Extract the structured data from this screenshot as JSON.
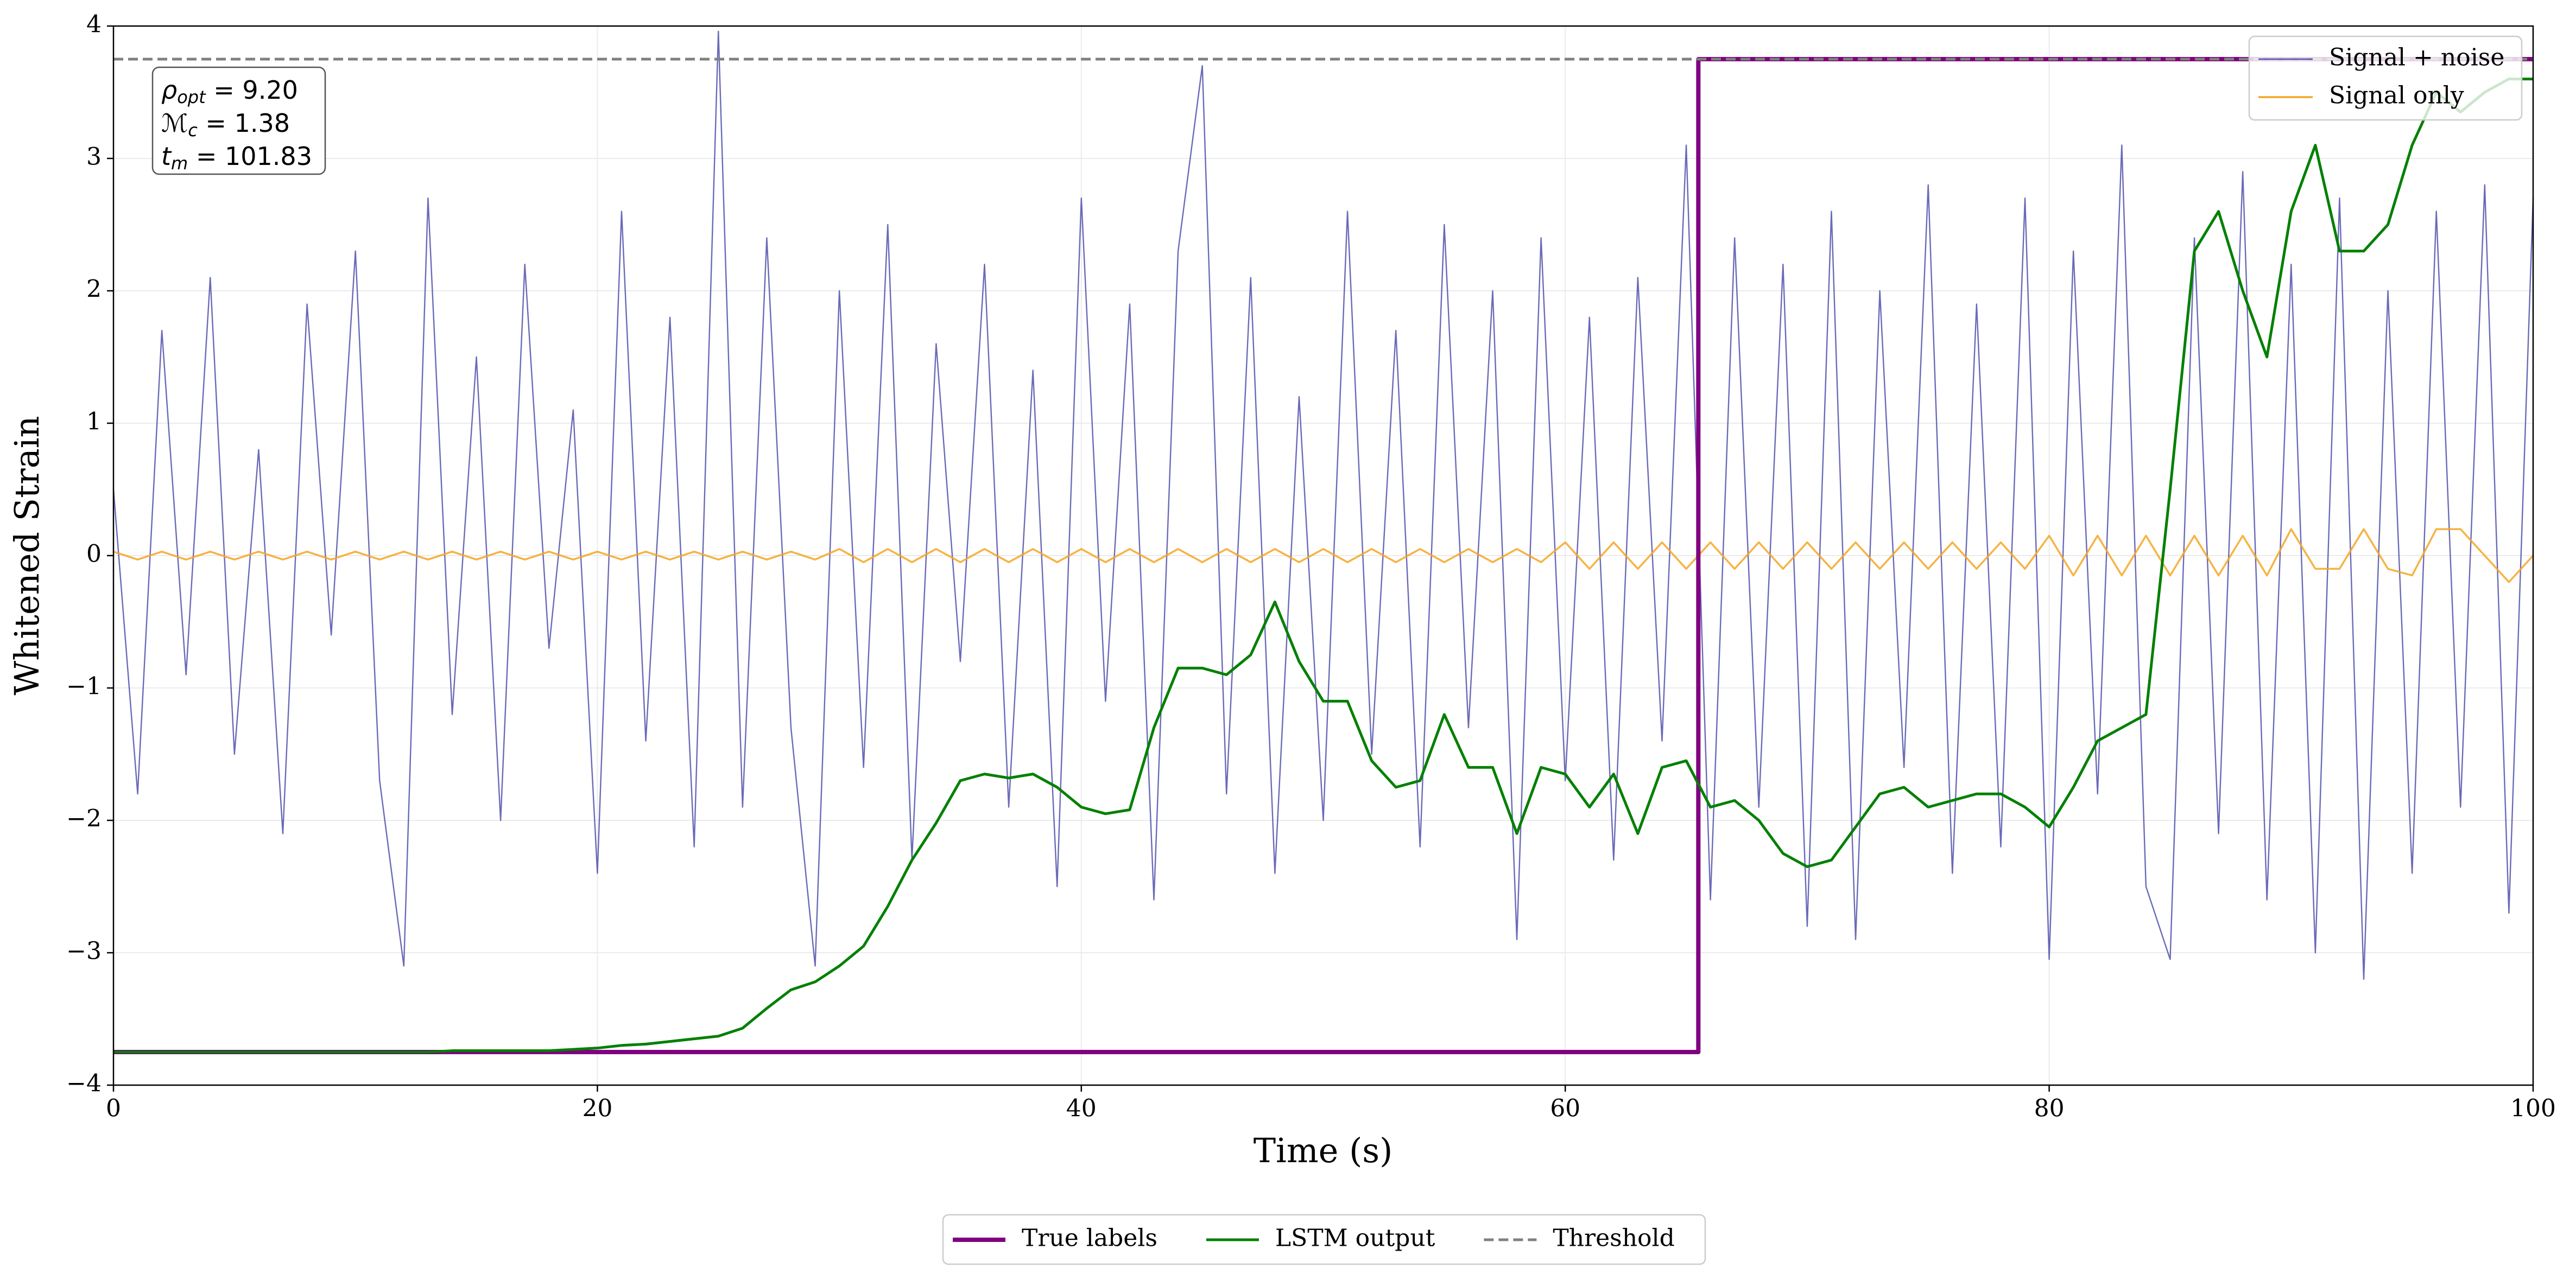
{
  "chart_data": {
    "type": "line",
    "xlabel": "Time (s)",
    "ylabel": "Whitened Strain",
    "xlim": [
      0,
      100
    ],
    "ylim": [
      -4,
      4
    ],
    "xticks": [
      0,
      20,
      40,
      60,
      80,
      100
    ],
    "yticks": [
      {
        "value": -4,
        "label": "−4"
      },
      {
        "value": -3,
        "label": "−3"
      },
      {
        "value": -2,
        "label": "−2"
      },
      {
        "value": -1,
        "label": "−1"
      },
      0,
      1,
      2,
      3,
      4
    ],
    "grid": true,
    "annotation": [
      {
        "symbol": "ρ",
        "sub": "opt",
        "text": " = 9.20"
      },
      {
        "symbol": "ℳ",
        "sub": "c",
        "text": " = 1.38"
      },
      {
        "symbol": "t",
        "sub": "m",
        "text": " = 101.83"
      }
    ],
    "x": [
      0,
      1,
      2,
      3,
      4,
      5,
      6,
      7,
      8,
      9,
      10,
      11,
      12,
      13,
      14,
      15,
      16,
      17,
      18,
      19,
      20,
      21,
      22,
      23,
      24,
      25,
      26,
      27,
      28,
      29,
      30,
      31,
      32,
      33,
      34,
      35,
      36,
      37,
      38,
      39,
      40,
      41,
      42,
      43,
      44,
      45,
      46,
      47,
      48,
      49,
      50,
      51,
      52,
      53,
      54,
      55,
      56,
      57,
      58,
      59,
      60,
      61,
      62,
      63,
      64,
      65,
      66,
      67,
      68,
      69,
      70,
      71,
      72,
      73,
      74,
      75,
      76,
      77,
      78,
      79,
      80,
      81,
      82,
      83,
      84,
      85,
      86,
      87,
      88,
      89,
      90,
      91,
      92,
      93,
      94,
      95,
      96,
      97,
      98,
      99,
      100
    ],
    "series": [
      {
        "name": "Signal + noise",
        "color": "#5050ad",
        "linewidth": 2.4,
        "linestyle": "solid",
        "legend": "upper right",
        "values": [
          0.5,
          -1.8,
          1.7,
          -0.9,
          2.1,
          -1.5,
          0.8,
          -2.1,
          1.9,
          -0.6,
          2.3,
          -1.7,
          -3.1,
          2.7,
          -1.2,
          1.5,
          -2.0,
          2.2,
          -0.7,
          1.1,
          -2.4,
          2.6,
          -1.4,
          1.8,
          -2.2,
          3.96,
          -1.9,
          2.4,
          -1.3,
          -3.1,
          2.0,
          -1.6,
          2.5,
          -2.3,
          1.6,
          -0.8,
          2.2,
          -1.9,
          1.4,
          -2.5,
          2.7,
          -1.1,
          1.9,
          -2.6,
          2.3,
          3.7,
          -1.8,
          2.1,
          -2.4,
          1.2,
          -2.0,
          2.6,
          -1.5,
          1.7,
          -2.2,
          2.5,
          -1.3,
          2.0,
          -2.9,
          2.4,
          -1.7,
          1.8,
          -2.3,
          2.1,
          -1.4,
          3.1,
          -2.6,
          2.4,
          -1.9,
          2.2,
          -2.8,
          2.6,
          -2.9,
          2.0,
          -1.6,
          2.8,
          -2.4,
          1.9,
          -2.2,
          2.7,
          -3.05,
          2.3,
          -1.8,
          3.1,
          -2.5,
          -3.05,
          2.4,
          -2.1,
          2.9,
          -2.6,
          2.2,
          -3.0,
          2.7,
          -3.2,
          2.0,
          -2.4,
          2.6,
          -1.9,
          2.8,
          -2.7,
          2.7
        ]
      },
      {
        "name": "Signal only",
        "color": "#f5a623",
        "linewidth": 3.5,
        "linestyle": "solid",
        "legend": "upper right",
        "values": [
          0.03,
          -0.03,
          0.03,
          -0.03,
          0.03,
          -0.03,
          0.03,
          -0.03,
          0.03,
          -0.03,
          0.03,
          -0.03,
          0.03,
          -0.03,
          0.03,
          -0.03,
          0.03,
          -0.03,
          0.03,
          -0.03,
          0.03,
          -0.03,
          0.03,
          -0.03,
          0.03,
          -0.03,
          0.03,
          -0.03,
          0.03,
          -0.03,
          0.05,
          -0.05,
          0.05,
          -0.05,
          0.05,
          -0.05,
          0.05,
          -0.05,
          0.05,
          -0.05,
          0.05,
          -0.05,
          0.05,
          -0.05,
          0.05,
          -0.05,
          0.05,
          -0.05,
          0.05,
          -0.05,
          0.05,
          -0.05,
          0.05,
          -0.05,
          0.05,
          -0.05,
          0.05,
          -0.05,
          0.05,
          -0.05,
          0.1,
          -0.1,
          0.1,
          -0.1,
          0.1,
          -0.1,
          0.1,
          -0.1,
          0.1,
          -0.1,
          0.1,
          -0.1,
          0.1,
          -0.1,
          0.1,
          -0.1,
          0.1,
          -0.1,
          0.1,
          -0.1,
          0.15,
          -0.15,
          0.15,
          -0.15,
          0.15,
          -0.15,
          0.15,
          -0.15,
          0.15,
          -0.15,
          0.2,
          -0.1,
          -0.1,
          0.2,
          -0.1,
          -0.15,
          0.2,
          0.2,
          0,
          -0.2,
          0
        ]
      },
      {
        "name": "True labels",
        "color": "#800080",
        "linewidth": 8,
        "linestyle": "solid",
        "legend": "lower center",
        "x": [
          0,
          65.5,
          65.5,
          100
        ],
        "values": [
          -3.75,
          -3.75,
          3.75,
          3.75
        ]
      },
      {
        "name": "LSTM output",
        "color": "#008000",
        "linewidth": 5,
        "linestyle": "solid",
        "legend": "lower center",
        "values": [
          -3.75,
          -3.75,
          -3.75,
          -3.75,
          -3.75,
          -3.75,
          -3.75,
          -3.75,
          -3.75,
          -3.75,
          -3.75,
          -3.75,
          -3.75,
          -3.75,
          -3.74,
          -3.74,
          -3.74,
          -3.74,
          -3.74,
          -3.73,
          -3.72,
          -3.7,
          -3.69,
          -3.67,
          -3.65,
          -3.63,
          -3.57,
          -3.42,
          -3.28,
          -3.22,
          -3.1,
          -2.95,
          -2.65,
          -2.3,
          -2.02,
          -1.7,
          -1.65,
          -1.68,
          -1.65,
          -1.75,
          -1.9,
          -1.95,
          -1.92,
          -1.3,
          -0.85,
          -0.85,
          -0.9,
          -0.75,
          -0.35,
          -0.8,
          -1.1,
          -1.1,
          -1.55,
          -1.75,
          -1.7,
          -1.2,
          -1.6,
          -1.6,
          -2.1,
          -1.6,
          -1.65,
          -1.9,
          -1.65,
          -2.1,
          -1.6,
          -1.55,
          -1.9,
          -1.85,
          -2.0,
          -2.25,
          -2.35,
          -2.3,
          -2.05,
          -1.8,
          -1.75,
          -1.9,
          -1.85,
          -1.8,
          -1.8,
          -1.9,
          -2.05,
          -1.75,
          -1.4,
          -1.3,
          -1.2,
          0.5,
          2.3,
          2.6,
          2.0,
          1.5,
          2.6,
          3.1,
          2.3,
          2.3,
          2.5,
          3.1,
          3.5,
          3.35,
          3.5,
          3.6,
          3.6
        ]
      },
      {
        "name": "Threshold",
        "color": "#808080",
        "linewidth": 5,
        "linestyle": "dashed",
        "legend": "lower center",
        "x": [
          0,
          100
        ],
        "values": [
          3.75,
          3.75
        ]
      }
    ]
  }
}
